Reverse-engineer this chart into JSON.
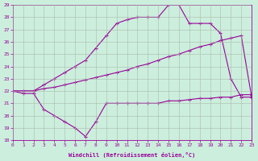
{
  "xlabel": "Windchill (Refroidissement éolien,°C)",
  "background_color": "#cceedd",
  "line_color": "#990099",
  "grid_color": "#aabbaa",
  "xlim": [
    0,
    23
  ],
  "ylim": [
    18,
    29
  ],
  "yticks": [
    18,
    19,
    20,
    21,
    22,
    23,
    24,
    25,
    26,
    27,
    28,
    29
  ],
  "xticks": [
    0,
    1,
    2,
    3,
    4,
    5,
    6,
    7,
    8,
    9,
    10,
    11,
    12,
    13,
    14,
    15,
    16,
    17,
    18,
    19,
    20,
    21,
    22,
    23
  ],
  "series1_x": [
    0,
    1,
    2,
    3,
    4,
    5,
    6,
    7,
    8,
    9,
    10,
    11,
    12,
    13,
    14,
    15,
    16,
    17,
    18,
    19,
    20,
    21,
    22,
    23
  ],
  "series1_y": [
    22,
    21.8,
    21.8,
    20.5,
    20.0,
    19.5,
    19.0,
    18.3,
    19.5,
    21.0,
    21.0,
    21.0,
    21.0,
    21.0,
    21.0,
    21.2,
    21.2,
    21.3,
    21.4,
    21.4,
    21.5,
    21.5,
    21.7,
    21.7
  ],
  "series2_x": [
    0,
    1,
    2,
    3,
    4,
    5,
    6,
    7,
    8,
    9,
    10,
    11,
    12,
    13,
    14,
    15,
    16,
    17,
    18,
    19,
    20,
    21,
    22,
    23
  ],
  "series2_y": [
    22.0,
    22.0,
    22.0,
    22.2,
    22.3,
    22.5,
    22.7,
    22.9,
    23.1,
    23.3,
    23.5,
    23.7,
    24.0,
    24.2,
    24.5,
    24.8,
    25.0,
    25.3,
    25.6,
    25.8,
    26.1,
    26.3,
    26.5,
    21.5
  ],
  "series3_x": [
    0,
    1,
    2,
    3,
    4,
    5,
    6,
    7,
    8,
    9,
    10,
    11,
    12,
    13,
    14,
    15,
    16,
    17,
    18,
    19,
    20,
    21,
    22,
    23
  ],
  "series3_y": [
    22.0,
    22.0,
    22.0,
    22.5,
    23.0,
    23.5,
    24.0,
    24.5,
    25.5,
    26.5,
    27.5,
    27.8,
    28.0,
    28.0,
    28.0,
    29.0,
    29.0,
    27.5,
    27.5,
    27.5,
    26.7,
    23.0,
    21.5,
    21.5
  ]
}
